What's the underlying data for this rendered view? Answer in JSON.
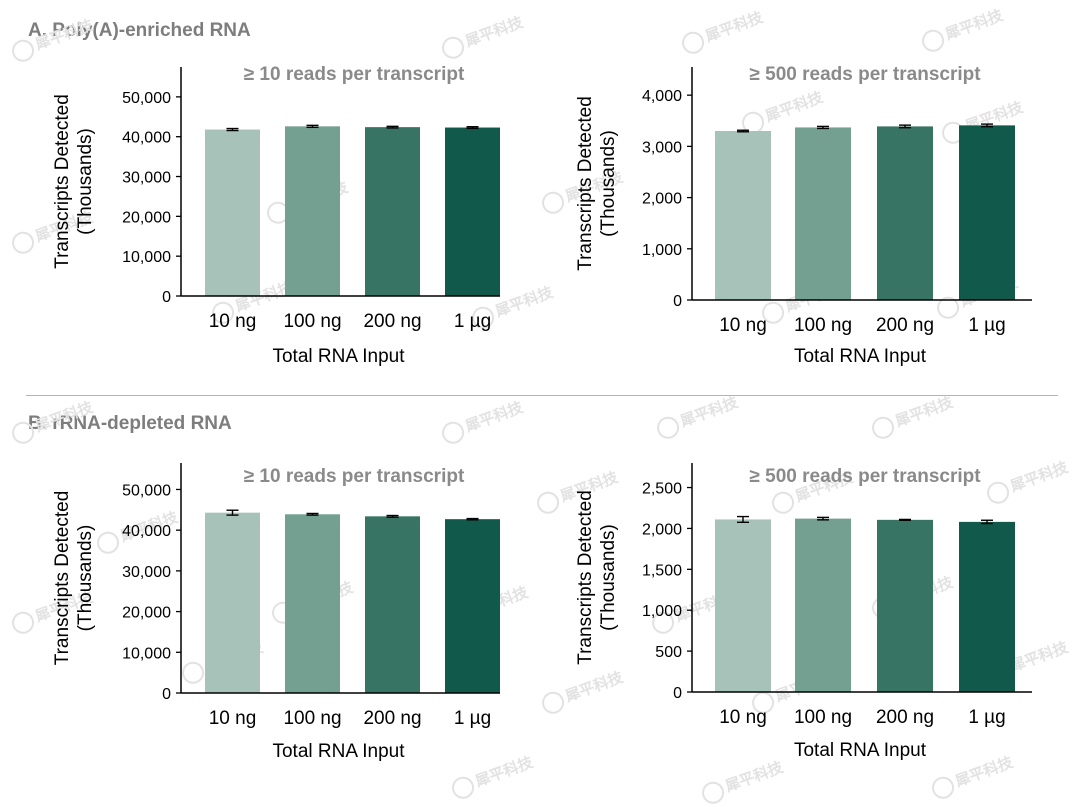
{
  "sections": {
    "a": {
      "title": "A. Poly(A)-enriched RNA"
    },
    "b": {
      "title": "B. rRNA-depleted RNA"
    }
  },
  "colors": {
    "bars": [
      "#a7c2b9",
      "#74a092",
      "#387463",
      "#11594a"
    ],
    "axis": "#000000",
    "title": "#7d7d7d"
  },
  "chart_data": [
    {
      "id": "a-left",
      "type": "bar",
      "title": "≥ 10 reads per transcript",
      "xlabel": "Total RNA Input",
      "ylabel": [
        "Transcripts Detected",
        "(Thousands)"
      ],
      "categories": [
        "10 ng",
        "100 ng",
        "200 ng",
        "1 µg"
      ],
      "values": [
        41800,
        42600,
        42400,
        42300
      ],
      "errors": [
        250,
        250,
        200,
        200
      ],
      "ylim": [
        0,
        57500
      ],
      "yticks": [
        0,
        10000,
        20000,
        30000,
        40000,
        50000
      ],
      "yticklabels": [
        "0",
        "10,000",
        "20,000",
        "30,000",
        "40,000",
        "50,000"
      ]
    },
    {
      "id": "a-right",
      "type": "bar",
      "title": "≥ 500 reads per transcript",
      "xlabel": "Total RNA Input",
      "ylabel": [
        "Transcripts Detected",
        "(Thousands)"
      ],
      "categories": [
        "10 ng",
        "100 ng",
        "200 ng",
        "1 µg"
      ],
      "values": [
        3300,
        3370,
        3390,
        3410
      ],
      "errors": [
        15,
        20,
        25,
        25
      ],
      "ylim": [
        0,
        4550
      ],
      "yticks": [
        0,
        1000,
        2000,
        3000,
        4000
      ],
      "yticklabels": [
        "0",
        "1,000",
        "2,000",
        "3,000",
        "4,000"
      ]
    },
    {
      "id": "b-left",
      "type": "bar",
      "title": "≥ 10 reads per transcript",
      "xlabel": "Total RNA Input",
      "ylabel": [
        "Transcripts Detected",
        "(Thousands)"
      ],
      "categories": [
        "10 ng",
        "100 ng",
        "200 ng",
        "1 µg"
      ],
      "values": [
        44300,
        43900,
        43400,
        42700
      ],
      "errors": [
        600,
        200,
        200,
        150
      ],
      "ylim": [
        0,
        56500
      ],
      "yticks": [
        0,
        10000,
        20000,
        30000,
        40000,
        50000
      ],
      "yticklabels": [
        "0",
        "10,000",
        "20,000",
        "30,000",
        "40,000",
        "50,000"
      ]
    },
    {
      "id": "b-right",
      "type": "bar",
      "title": "≥ 500 reads per transcript",
      "xlabel": "Total RNA Input",
      "ylabel": [
        "Transcripts Detected",
        "(Thousands)"
      ],
      "categories": [
        "10 ng",
        "100 ng",
        "200 ng",
        "1 µg"
      ],
      "values": [
        2110,
        2120,
        2105,
        2080
      ],
      "errors": [
        35,
        15,
        5,
        20
      ],
      "ylim": [
        0,
        2800
      ],
      "yticks": [
        0,
        500,
        1000,
        1500,
        2000,
        2500
      ],
      "yticklabels": [
        "0",
        "500",
        "1,000",
        "1,500",
        "2,000",
        "2,500"
      ]
    }
  ],
  "watermark": {
    "text": "犀平科技",
    "icon": "brand-logo-icon"
  }
}
